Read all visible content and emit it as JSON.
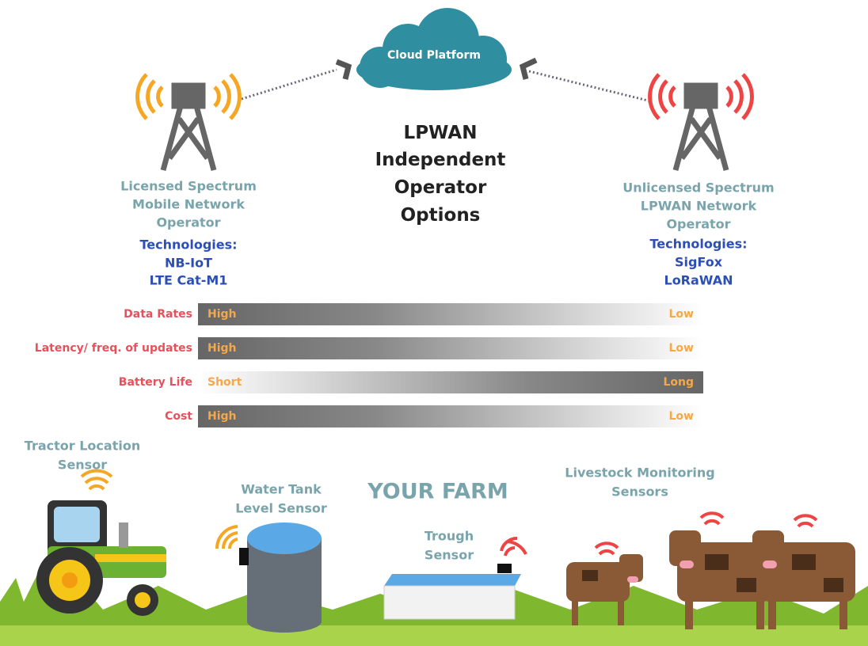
{
  "cloud": {
    "label": "Cloud Platform"
  },
  "title": {
    "lines": [
      "LPWAN",
      "Independent",
      "Operator",
      "Options"
    ]
  },
  "left_operator": {
    "label_lines": [
      "Licensed Spectrum",
      "Mobile Network",
      "Operator"
    ],
    "technologies_label": "Technologies:",
    "technologies": [
      "NB-IoT",
      "LTE Cat-M1"
    ]
  },
  "right_operator": {
    "label_lines": [
      "Unlicensed Spectrum",
      "LPWAN Network",
      "Operator"
    ],
    "technologies_label": "Technologies:",
    "technologies": [
      "SigFox",
      "LoRaWAN"
    ]
  },
  "comparison": [
    {
      "label": "Data Rates",
      "left": "High",
      "right": "Low"
    },
    {
      "label": "Latency/ freq. of updates",
      "left": "High",
      "right": "Low"
    },
    {
      "label": "Battery Life",
      "left": "Short",
      "right": "Long"
    },
    {
      "label": "Cost",
      "left": "High",
      "right": "Low"
    }
  ],
  "farm": {
    "title": "YOUR FARM",
    "sensors": [
      {
        "label_lines": [
          "Tractor Location",
          "Sensor"
        ]
      },
      {
        "label_lines": [
          "Water Tank",
          "Level Sensor"
        ]
      },
      {
        "label_lines": [
          "Trough",
          "Sensor"
        ]
      },
      {
        "label_lines": [
          "Livestock Monitoring",
          "Sensors"
        ]
      }
    ]
  }
}
